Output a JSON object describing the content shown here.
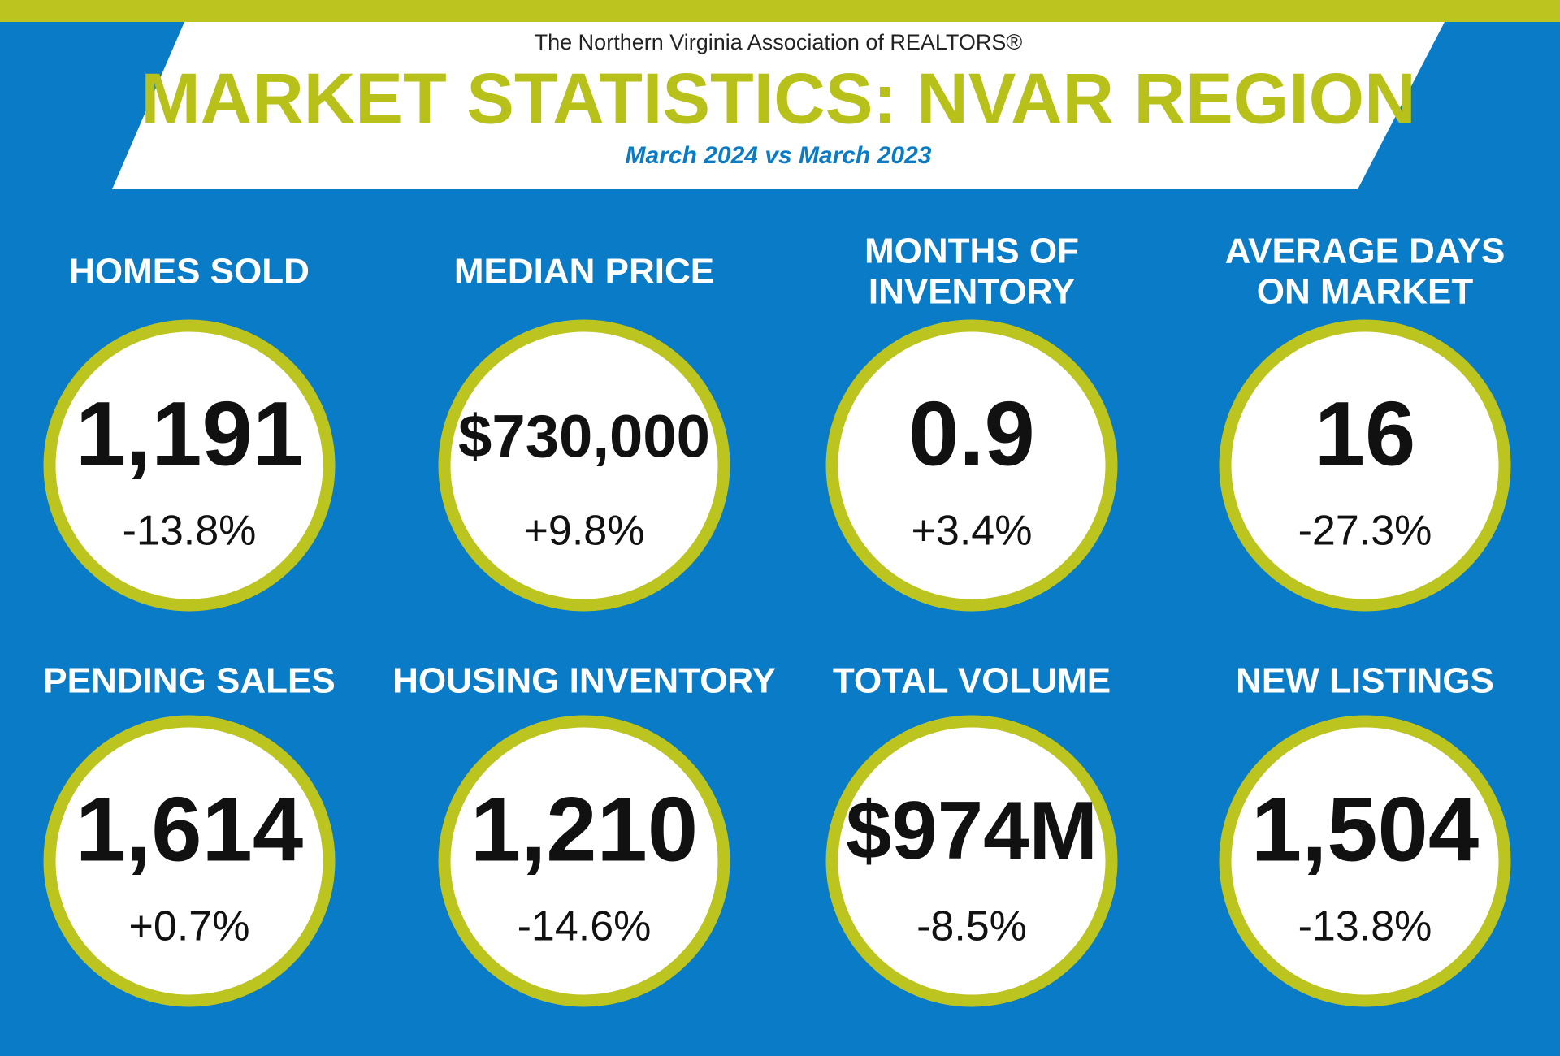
{
  "header": {
    "org": "The Northern Virginia Association of REALTORS®",
    "title": "MARKET STATISTICS: NVAR REGION",
    "subtitle": "March 2024 vs March 2023"
  },
  "stats": [
    {
      "label": [
        "HOMES SOLD"
      ],
      "value": "1,191",
      "change": "-13.8%"
    },
    {
      "label": [
        "MEDIAN PRICE"
      ],
      "value": "$730,000",
      "change": "+9.8%"
    },
    {
      "label": [
        "MONTHS OF",
        "INVENTORY"
      ],
      "value": "0.9",
      "change": "+3.4%"
    },
    {
      "label": [
        "AVERAGE DAYS",
        "ON MARKET"
      ],
      "value": "16",
      "change": "-27.3%"
    },
    {
      "label": [
        "PENDING SALES"
      ],
      "value": "1,614",
      "change": "+0.7%"
    },
    {
      "label": [
        "HOUSING INVENTORY"
      ],
      "value": "1,210",
      "change": "-14.6%"
    },
    {
      "label": [
        "TOTAL VOLUME"
      ],
      "value": "$974M",
      "change": "-8.5%"
    },
    {
      "label": [
        "NEW LISTINGS"
      ],
      "value": "1,504",
      "change": "-13.8%"
    }
  ]
}
